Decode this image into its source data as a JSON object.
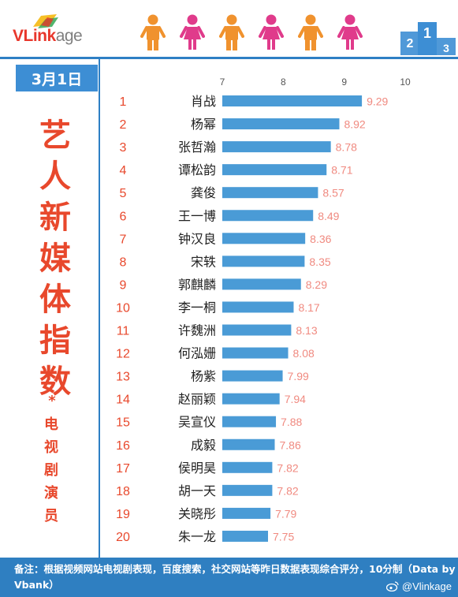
{
  "header": {
    "logo_main": "VLink",
    "logo_suffix": "age",
    "podium_digits": [
      "2",
      "1",
      "3"
    ]
  },
  "date_label": "3月1日",
  "side_title": {
    "chars": [
      "艺",
      "人",
      "新",
      "媒",
      "体",
      "指",
      "数"
    ],
    "star": "*",
    "sub_chars": [
      "电",
      "视",
      "剧",
      "演",
      "员"
    ]
  },
  "footer": {
    "note": "备注：根据视频网站电视剧表现，百度搜索，社交网站等昨日数据表现综合评分，10分制（Data by Vbank）",
    "weibo": "@Vlinkage"
  },
  "colors": {
    "bar": "#4a9bd6",
    "rank": "#e8482c",
    "value": "#f08a80",
    "accent_blue": "#2e7fc4",
    "person_orange": "#f0922e",
    "person_pink": "#e03b8b"
  },
  "chart_data": {
    "type": "bar",
    "orientation": "horizontal",
    "xlim": [
      7,
      10
    ],
    "xticks": [
      7,
      8,
      9,
      10
    ],
    "grid": false,
    "ranks": [
      1,
      2,
      3,
      4,
      5,
      6,
      7,
      8,
      9,
      10,
      11,
      12,
      13,
      14,
      15,
      16,
      17,
      18,
      19,
      20
    ],
    "categories": [
      "肖战",
      "杨幂",
      "张哲瀚",
      "谭松韵",
      "龚俊",
      "王一博",
      "钟汉良",
      "宋轶",
      "郭麒麟",
      "李一桐",
      "许魏洲",
      "何泓姗",
      "杨紫",
      "赵丽颖",
      "吴宣仪",
      "成毅",
      "侯明昊",
      "胡一天",
      "关晓彤",
      "朱一龙"
    ],
    "values": [
      9.29,
      8.92,
      8.78,
      8.71,
      8.57,
      8.49,
      8.36,
      8.35,
      8.29,
      8.17,
      8.13,
      8.08,
      7.99,
      7.94,
      7.88,
      7.86,
      7.82,
      7.82,
      7.79,
      7.75
    ]
  }
}
